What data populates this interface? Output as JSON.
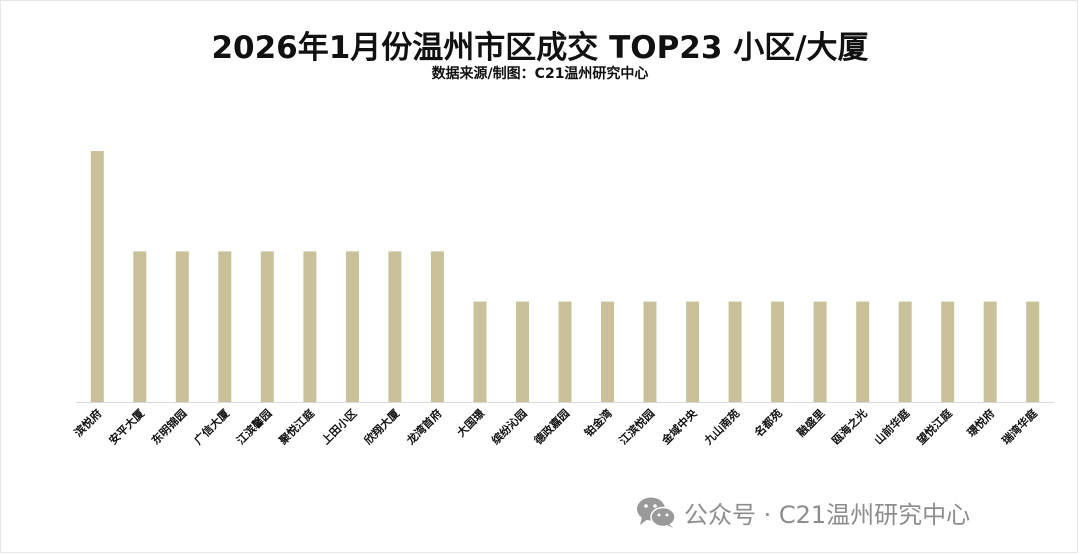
{
  "title": "2026年1月份温州市区成交 TOP23 小区/大厦",
  "subtitle": "数据来源/制图：C21温州研究中心",
  "watermark": {
    "text": "公众号 · C21温州研究中心",
    "icon": "wechat-icon"
  },
  "colors": {
    "bar": "#c8c19a",
    "axis": "#d9d9d9",
    "text": "#111111",
    "watermark": "#8d8d8d"
  },
  "chart_data": {
    "type": "bar",
    "title": "2026年1月份温州市区成交 TOP23 小区/大厦",
    "subtitle": "数据来源/制图：C21温州研究中心",
    "categories": [
      "滨悦府",
      "安平大厦",
      "东明锦园",
      "广信大厦",
      "江滨馨园",
      "聚悦江庭",
      "上田小区",
      "欣翔大厦",
      "龙湾首府",
      "大国璟",
      "缤纷沁园",
      "德政嘉园",
      "铂金湾",
      "江滨悦园",
      "金域中央",
      "九山南苑",
      "名都苑",
      "融盛里",
      "瓯海之光",
      "山前华庭",
      "望悦江庭",
      "璟悦府",
      "瑞湾华庭"
    ],
    "values": [
      5,
      3,
      3,
      3,
      3,
      3,
      3,
      3,
      3,
      2,
      2,
      2,
      2,
      2,
      2,
      2,
      2,
      2,
      2,
      2,
      2,
      2,
      2
    ],
    "ylim": [
      0,
      5.2
    ],
    "grid": false,
    "legend": "none",
    "xlabel": "",
    "ylabel": ""
  }
}
